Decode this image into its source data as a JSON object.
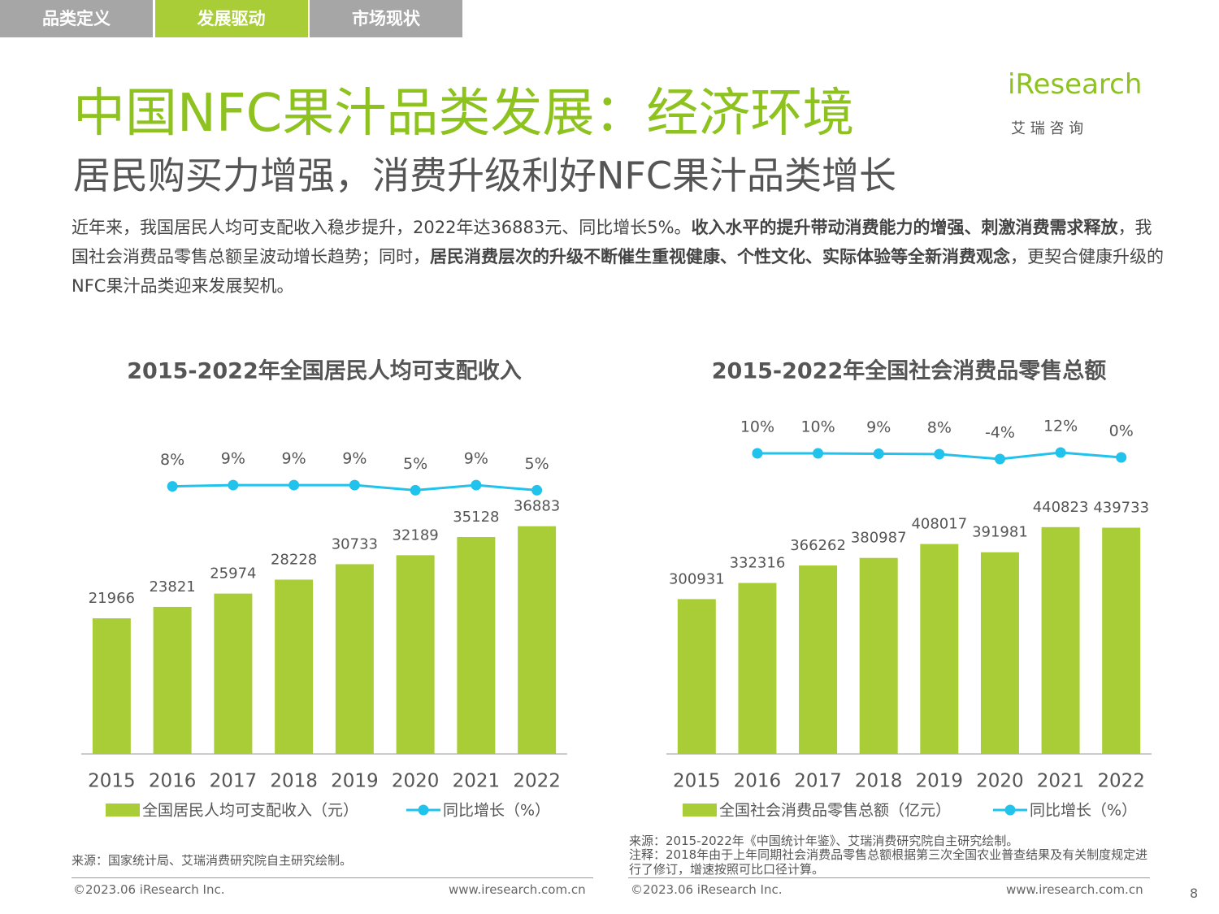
{
  "tabs": {
    "items": [
      "品类定义",
      "发展驱动",
      "市场现状"
    ],
    "active": 1
  },
  "logo": {
    "brand": "iResearch",
    "sub": "艾 瑞 咨 询"
  },
  "header": {
    "title": "中国NFC果汁品类发展：经济环境",
    "subtitle": "居民购买力增强，消费升级利好NFC果汁品类增长"
  },
  "intro": {
    "runs": [
      {
        "text": "近年来，我国居民人均可支配收入稳步提升，2022年达36883元、同比增长5%。",
        "bold": false
      },
      {
        "text": "收入水平的提升带动消费能力的增强、刺激消费需求释放",
        "bold": true
      },
      {
        "text": "，我国社会消费品零售总额呈波动增长趋势；同时，",
        "bold": false
      },
      {
        "text": "居民消费层次的升级不断催生重视健康、个性文化、实际体验等全新消费观念",
        "bold": true
      },
      {
        "text": "，更契合健康升级的NFC果汁品类迎来发展契机。",
        "bold": false
      }
    ]
  },
  "chart_data": [
    {
      "type": "bar-line",
      "title": "2015-2022年全国居民人均可支配收入",
      "categories": [
        "2015",
        "2016",
        "2017",
        "2018",
        "2019",
        "2020",
        "2021",
        "2022"
      ],
      "series": [
        {
          "name": "全国居民人均可支配收入（元）",
          "type": "bar",
          "color": "#a9cd36",
          "values": [
            21966,
            23821,
            25974,
            28228,
            30733,
            32189,
            35128,
            36883
          ]
        },
        {
          "name": "同比增长（%）",
          "type": "line",
          "axis": "y2",
          "color": "#21c2ec",
          "values": [
            null,
            8,
            9,
            9,
            9,
            5,
            9,
            5
          ],
          "value_labels": [
            null,
            "8%",
            "9%",
            "9%",
            "9%",
            "5%",
            "9%",
            "5%"
          ]
        }
      ],
      "ylim": [
        0,
        50000
      ],
      "y2lim": [
        -200,
        40
      ]
    },
    {
      "type": "bar-line",
      "title": "2015-2022年全国社会消费品零售总额",
      "categories": [
        "2015",
        "2016",
        "2017",
        "2018",
        "2019",
        "2020",
        "2021",
        "2022"
      ],
      "series": [
        {
          "name": "全国社会消费品零售总额（亿元）",
          "type": "bar",
          "color": "#a9cd36",
          "values": [
            300931,
            332316,
            366262,
            380987,
            408017,
            391981,
            440823,
            439733
          ]
        },
        {
          "name": "同比增长（%）",
          "type": "line",
          "axis": "y2",
          "color": "#21c2ec",
          "values": [
            null,
            10,
            10,
            9,
            8,
            -4,
            12,
            0
          ],
          "value_labels": [
            null,
            "10%",
            "10%",
            "9%",
            "8%",
            "-4%",
            "12%",
            "0%"
          ]
        }
      ],
      "ylim": [
        0,
        600000
      ],
      "y2lim": [
        -730,
        30
      ]
    }
  ],
  "notes": {
    "left_source": "来源：国家统计局、艾瑞消费研究院自主研究绘制。",
    "right_source": "来源：2015-2022年《中国统计年鉴》、艾瑞消费研究院自主研究绘制。",
    "right_note": "注释：2018年由于上年同期社会消费品零售总额根据第三次全国农业普查结果及有关制度规定进行了修订，增速按照可比口径计算。"
  },
  "footer": {
    "copyright_left": "©2023.06 iResearch Inc.",
    "url_left": "www.iresearch.com.cn",
    "copyright_right": "©2023.06 iResearch Inc.",
    "url_right": "www.iresearch.com.cn",
    "page": "8"
  }
}
